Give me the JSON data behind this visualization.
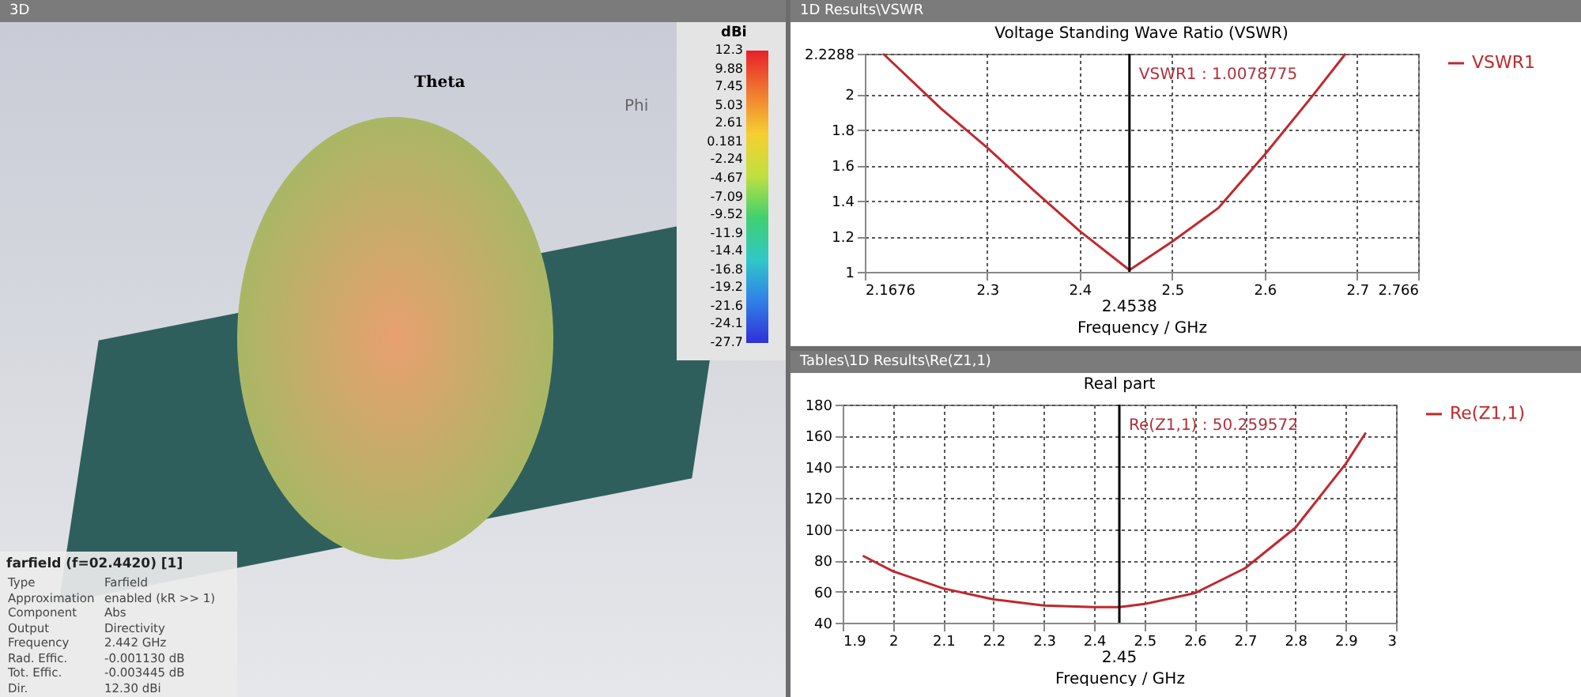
{
  "chart_data": [
    {
      "type": "other",
      "title": "3D",
      "annotations": [
        "Theta",
        "Phi",
        "dBi",
        "12.3",
        "9.88",
        "7.45",
        "5.03",
        "2.61",
        "0.181",
        "-2.24",
        "-4.67",
        "-7.09",
        "-9.52",
        "-11.9",
        "-14.4",
        "-16.8",
        "-19.2",
        "-21.6",
        "-24.1",
        "-27.7",
        "farfield (f=02.4420) [1]",
        "Type",
        "Farfield",
        "Approximation",
        "enabled (kR >> 1)",
        "Component",
        "Abs",
        "Output",
        "Directivity",
        "Frequency",
        "2.442 GHz",
        "Rad. Effic.",
        "-0.001130 dB",
        "Tot. Effic.",
        "-0.003445 dB",
        "Dir.",
        "12.30 dBi"
      ]
    },
    {
      "type": "line",
      "title": "Voltage Standing Wave Ratio (VSWR)",
      "xlabel": "Frequency / GHz",
      "legend": "right",
      "grid": true,
      "x": [
        2.1875,
        2.25,
        2.3,
        2.35,
        2.4,
        2.4538,
        2.5,
        2.55,
        2.6,
        2.65,
        2.6875
      ],
      "series": [
        {
          "name": "VSWR1",
          "color": "#c0282d",
          "values": [
            2.2288,
            1.92,
            1.7,
            1.46,
            1.23,
            1.01,
            1.17,
            1.36,
            1.66,
            1.98,
            2.2288
          ]
        }
      ],
      "xlim": [
        2.1676,
        2.766
      ],
      "xticks": [
        2.1676,
        2.3,
        2.4,
        2.5,
        2.6,
        2.7,
        2.766
      ],
      "ylim": [
        1,
        2.2288
      ],
      "yticks": [
        1,
        1.2,
        1.4,
        1.6,
        1.8,
        2,
        2.2288
      ],
      "ref_lines": [
        {
          "axis": "x",
          "value": 2.4538,
          "label": "2.4538"
        }
      ],
      "annotations": [
        "1D Results\\VSWR",
        "VSWR1 : 1.0078775"
      ]
    },
    {
      "type": "line",
      "title": "Real part",
      "xlabel": "Frequency / GHz",
      "legend": "right",
      "grid": true,
      "x": [
        1.94,
        2.0,
        2.1,
        2.2,
        2.3,
        2.4,
        2.45,
        2.5,
        2.6,
        2.7,
        2.8,
        2.9,
        2.94
      ],
      "series": [
        {
          "name": "Re(Z1,1)",
          "color": "#c0282d",
          "values": [
            83,
            73,
            62,
            55,
            51,
            50,
            50,
            52,
            59,
            75,
            101,
            142,
            162
          ]
        }
      ],
      "xlim": [
        1.9,
        3
      ],
      "xticks": [
        1.9,
        2,
        2.1,
        2.2,
        2.3,
        2.4,
        2.5,
        2.6,
        2.7,
        2.8,
        2.9,
        3
      ],
      "ylim": [
        40,
        180
      ],
      "yticks": [
        40,
        60,
        80,
        100,
        120,
        140,
        160,
        180
      ],
      "ref_lines": [
        {
          "axis": "x",
          "value": 2.45,
          "label": "2.45"
        }
      ],
      "annotations": [
        "Tables\\1D Results\\Re(Z1,1)",
        "Re(Z1,1) : 50.259572"
      ]
    }
  ]
}
